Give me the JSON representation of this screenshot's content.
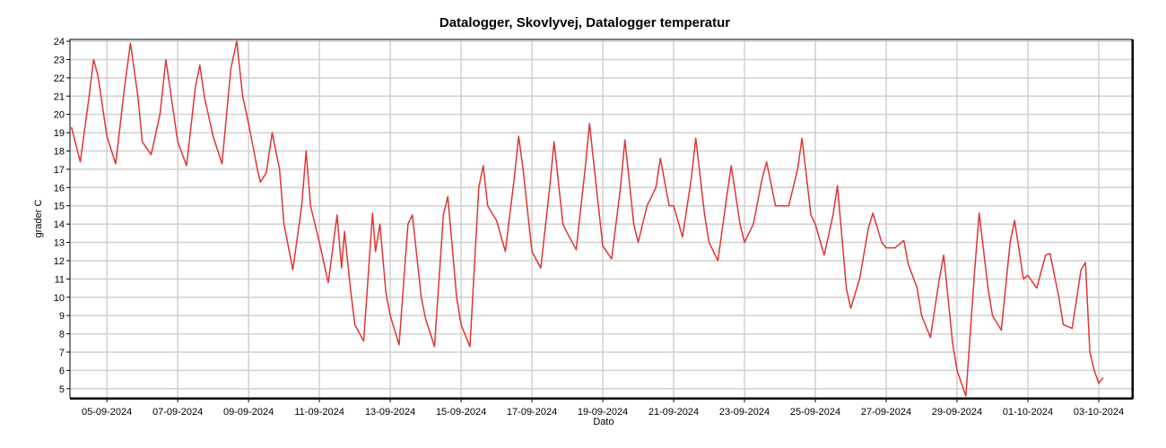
{
  "chart_data": {
    "type": "line",
    "title": "Datalogger, Skovlyvej, Datalogger temperatur",
    "xlabel": "Dato",
    "ylabel": "grader C",
    "grid": true,
    "xlim": [
      "03-09-2024 23:00",
      "03-10-2024 22:30"
    ],
    "ylim": [
      4.5,
      24.1
    ],
    "xticks": [
      "05-09-2024",
      "07-09-2024",
      "09-09-2024",
      "11-09-2024",
      "13-09-2024",
      "15-09-2024",
      "17-09-2024",
      "19-09-2024",
      "21-09-2024",
      "23-09-2024",
      "25-09-2024",
      "27-09-2024",
      "29-09-2024",
      "01-10-2024",
      "03-10-2024"
    ],
    "yticks": [
      5,
      6,
      7,
      8,
      9,
      10,
      11,
      12,
      13,
      14,
      15,
      16,
      17,
      18,
      19,
      20,
      21,
      22,
      23,
      24
    ],
    "x": [
      "04-09-2024 00:00",
      "04-09-2024 06:00",
      "04-09-2024 12:00",
      "04-09-2024 15:00",
      "04-09-2024 18:00",
      "05-09-2024 00:00",
      "05-09-2024 06:00",
      "05-09-2024 12:00",
      "05-09-2024 16:00",
      "05-09-2024 21:00",
      "06-09-2024 00:00",
      "06-09-2024 06:00",
      "06-09-2024 12:00",
      "06-09-2024 16:00",
      "07-09-2024 00:00",
      "07-09-2024 06:00",
      "07-09-2024 12:00",
      "07-09-2024 15:00",
      "07-09-2024 18:00",
      "08-09-2024 00:00",
      "08-09-2024 06:00",
      "08-09-2024 12:00",
      "08-09-2024 16:00",
      "08-09-2024 20:00",
      "09-09-2024 00:00",
      "09-09-2024 06:00",
      "09-09-2024 08:00",
      "09-09-2024 12:00",
      "09-09-2024 16:00",
      "09-09-2024 21:00",
      "10-09-2024 00:00",
      "10-09-2024 06:00",
      "10-09-2024 12:00",
      "10-09-2024 15:00",
      "10-09-2024 18:00",
      "11-09-2024 00:00",
      "11-09-2024 06:00",
      "11-09-2024 12:00",
      "11-09-2024 15:00",
      "11-09-2024 17:00",
      "11-09-2024 21:00",
      "12-09-2024 00:00",
      "12-09-2024 06:00",
      "12-09-2024 12:00",
      "12-09-2024 14:00",
      "12-09-2024 17:00",
      "12-09-2024 21:00",
      "13-09-2024 00:00",
      "13-09-2024 06:00",
      "13-09-2024 12:00",
      "13-09-2024 15:00",
      "13-09-2024 21:00",
      "14-09-2024 00:00",
      "14-09-2024 06:00",
      "14-09-2024 12:00",
      "14-09-2024 15:00",
      "14-09-2024 21:00",
      "15-09-2024 00:00",
      "15-09-2024 06:00",
      "15-09-2024 12:00",
      "15-09-2024 15:00",
      "15-09-2024 18:00",
      "16-09-2024 00:00",
      "16-09-2024 06:00",
      "16-09-2024 12:00",
      "16-09-2024 15:00",
      "16-09-2024 18:00",
      "17-09-2024 00:00",
      "17-09-2024 06:00",
      "17-09-2024 12:00",
      "17-09-2024 15:00",
      "17-09-2024 21:00",
      "18-09-2024 00:00",
      "18-09-2024 06:00",
      "18-09-2024 12:00",
      "18-09-2024 15:00",
      "18-09-2024 21:00",
      "19-09-2024 00:00",
      "19-09-2024 06:00",
      "19-09-2024 12:00",
      "19-09-2024 15:00",
      "19-09-2024 21:00",
      "20-09-2024 00:00",
      "20-09-2024 06:00",
      "20-09-2024 12:00",
      "20-09-2024 15:00",
      "20-09-2024 21:00",
      "21-09-2024 00:00",
      "21-09-2024 06:00",
      "21-09-2024 12:00",
      "21-09-2024 15:00",
      "21-09-2024 21:00",
      "22-09-2024 00:00",
      "22-09-2024 06:00",
      "22-09-2024 12:00",
      "22-09-2024 15:00",
      "22-09-2024 21:00",
      "23-09-2024 00:00",
      "23-09-2024 06:00",
      "23-09-2024 12:00",
      "23-09-2024 15:00",
      "23-09-2024 21:00",
      "24-09-2024 00:00",
      "24-09-2024 06:00",
      "24-09-2024 12:00",
      "24-09-2024 15:00",
      "24-09-2024 21:00",
      "25-09-2024 00:00",
      "25-09-2024 06:00",
      "25-09-2024 12:00",
      "25-09-2024 15:00",
      "25-09-2024 21:00",
      "26-09-2024 00:00",
      "26-09-2024 06:00",
      "26-09-2024 12:00",
      "26-09-2024 15:00",
      "26-09-2024 21:00",
      "27-09-2024 00:00",
      "27-09-2024 06:00",
      "27-09-2024 12:00",
      "27-09-2024 15:00",
      "27-09-2024 21:00",
      "28-09-2024 00:00",
      "28-09-2024 06:00",
      "28-09-2024 12:00",
      "28-09-2024 15:00",
      "28-09-2024 21:00",
      "29-09-2024 00:00",
      "29-09-2024 06:00",
      "29-09-2024 12:00",
      "29-09-2024 15:00",
      "29-09-2024 21:00",
      "30-09-2024 00:00",
      "30-09-2024 06:00",
      "30-09-2024 12:00",
      "30-09-2024 15:00",
      "30-09-2024 21:00",
      "01-10-2024 00:00",
      "01-10-2024 06:00",
      "01-10-2024 12:00",
      "01-10-2024 15:00",
      "01-10-2024 21:00",
      "02-10-2024 00:00",
      "02-10-2024 06:00",
      "02-10-2024 12:00",
      "02-10-2024 15:00",
      "02-10-2024 18:00",
      "02-10-2024 21:00",
      "03-10-2024 00:00",
      "03-10-2024 03:00"
    ],
    "series": [
      {
        "name": "Datalogger temperatur",
        "color": "#e03535",
        "values": [
          19.3,
          17.4,
          21,
          23.0,
          22.1,
          18.8,
          17.3,
          21.5,
          23.9,
          21,
          18.5,
          17.8,
          20,
          23,
          18.5,
          17.2,
          21.5,
          22.7,
          21,
          18.8,
          17.3,
          22.5,
          24.0,
          21,
          19.5,
          17,
          16.3,
          16.8,
          19.0,
          17,
          14,
          11.5,
          15,
          18,
          15,
          13,
          10.8,
          14.5,
          11.6,
          13.6,
          10.5,
          8.5,
          7.6,
          14.6,
          12.5,
          14,
          10.3,
          9,
          7.4,
          14,
          14.5,
          10,
          8.8,
          7.3,
          14.5,
          15.5,
          10,
          8.5,
          7.3,
          16,
          17.2,
          15,
          14.2,
          12.5,
          16.5,
          18.8,
          17,
          12.5,
          11.6,
          16,
          18.5,
          14,
          13.5,
          12.6,
          17,
          19.5,
          15,
          12.8,
          12.1,
          16,
          18.6,
          14,
          13,
          15,
          16,
          17.6,
          15,
          15,
          13.3,
          16.5,
          18.7,
          14.5,
          13,
          12,
          15.5,
          17.2,
          14,
          13,
          14,
          16.5,
          17.4,
          15,
          15,
          15,
          17,
          18.7,
          14.5,
          14,
          12.3,
          14.5,
          16.1,
          10.5,
          9.4,
          11,
          13.8,
          14.6,
          13,
          12.7,
          12.7,
          13.1,
          11.8,
          10.5,
          9,
          7.8,
          11,
          12.3,
          7.5,
          6,
          4.6,
          11.5,
          14.6,
          10.5,
          9,
          8.2,
          13,
          14.2,
          11,
          11.2,
          10.5,
          12.3,
          12.4,
          10,
          8.5,
          8.3,
          11.5,
          11.9,
          7,
          6,
          5.3,
          5.6
        ]
      }
    ]
  }
}
